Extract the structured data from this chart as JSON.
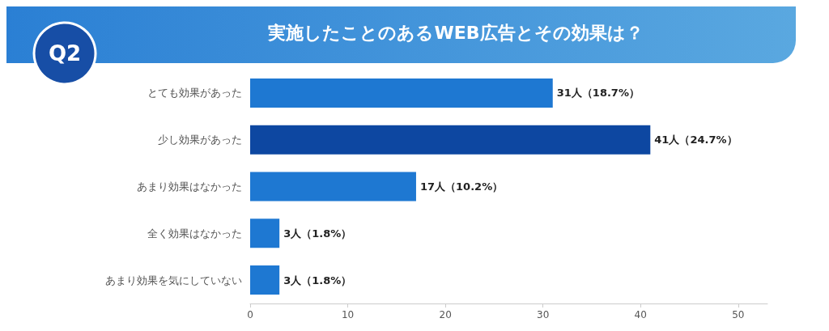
{
  "chart_data": {
    "type": "bar",
    "orientation": "horizontal",
    "title": "実施したことのあるWEB広告とその効果は？",
    "annotations": [
      "Q2"
    ],
    "categories": [
      "とても効果があった",
      "少し効果があった",
      "あまり効果はなかった",
      "全く効果はなかった",
      "あまり効果を気にしていない"
    ],
    "values": [
      31,
      41,
      17,
      3,
      3
    ],
    "colors": [
      "#1e78d2",
      "#0d47a1",
      "#1e78d2",
      "#1e78d2",
      "#1e78d2"
    ],
    "value_labels": [
      "31人（18.7%）",
      "41人（24.7%）",
      "17人（10.2%）",
      "3人（1.8%）",
      "3人（1.8%）"
    ],
    "xlim": [
      0,
      53
    ],
    "xticks": [
      0,
      10,
      20,
      30,
      40,
      50
    ]
  }
}
